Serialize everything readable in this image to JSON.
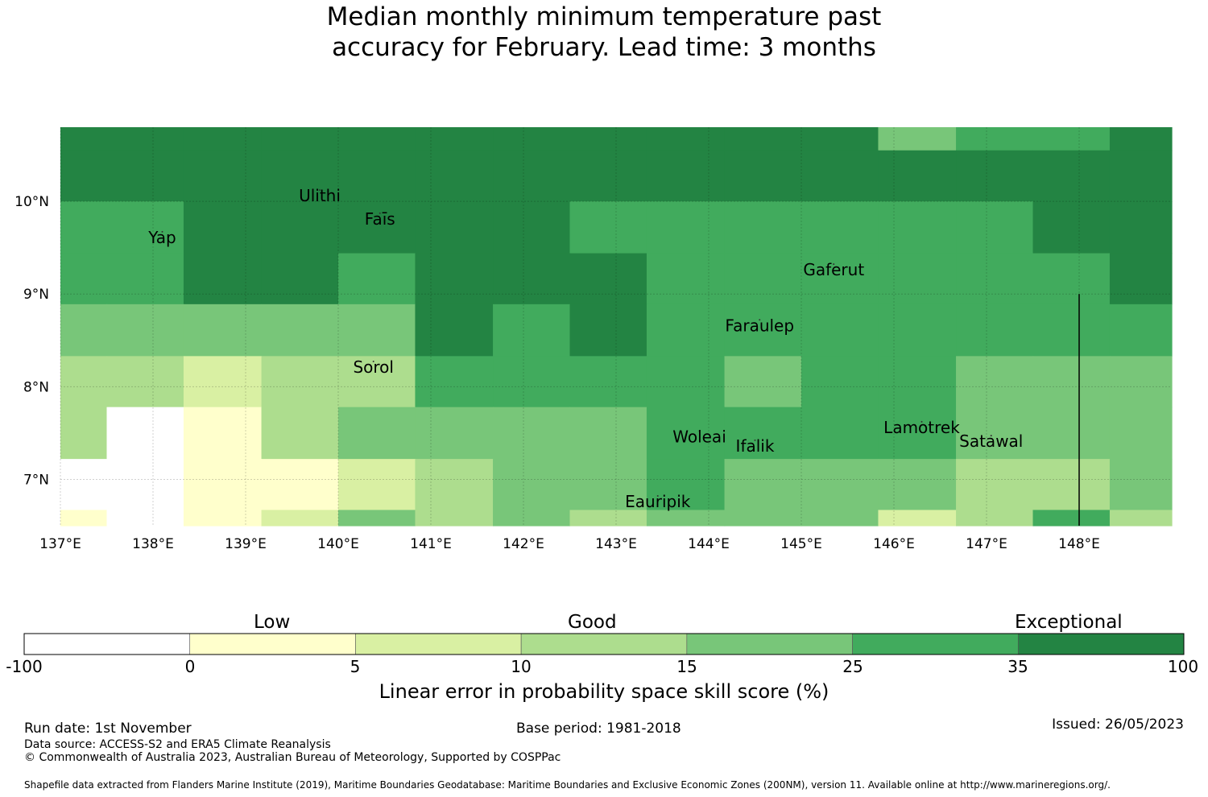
{
  "title": {
    "line1": "Median monthly minimum temperature past",
    "line2": "accuracy for February. Lead time: 3 months"
  },
  "map": {
    "lon_range": [
      137,
      149
    ],
    "lat_range": [
      6.5,
      10.8
    ],
    "x_ticks": [
      {
        "value": 137,
        "label": "137°E"
      },
      {
        "value": 138,
        "label": "138°E"
      },
      {
        "value": 139,
        "label": "139°E"
      },
      {
        "value": 140,
        "label": "140°E"
      },
      {
        "value": 141,
        "label": "141°E"
      },
      {
        "value": 142,
        "label": "142°E"
      },
      {
        "value": 143,
        "label": "143°E"
      },
      {
        "value": 144,
        "label": "144°E"
      },
      {
        "value": 145,
        "label": "145°E"
      },
      {
        "value": 146,
        "label": "146°E"
      },
      {
        "value": 147,
        "label": "147°E"
      },
      {
        "value": 148,
        "label": "148°E"
      }
    ],
    "y_ticks": [
      {
        "value": 10,
        "label": "10°N"
      },
      {
        "value": 9,
        "label": "9°N"
      },
      {
        "value": 8,
        "label": "8°N"
      },
      {
        "value": 7,
        "label": "7°N"
      }
    ],
    "grid_cols_lon": [
      137.0,
      137.5,
      138.33,
      139.17,
      140.0,
      140.83,
      141.67,
      142.5,
      143.33,
      144.17,
      145.0,
      145.83,
      146.67,
      147.5,
      148.33,
      149.0
    ],
    "grid_rows_lat": [
      10.8,
      10.55,
      10.0,
      9.44,
      8.89,
      8.33,
      7.78,
      7.22,
      6.67,
      6.5
    ],
    "cell_classes": [
      [
        6,
        6,
        6,
        6,
        6,
        6,
        6,
        6,
        6,
        6,
        6,
        4,
        5,
        5,
        6
      ],
      [
        6,
        6,
        6,
        6,
        6,
        6,
        6,
        6,
        6,
        6,
        6,
        6,
        6,
        6,
        6
      ],
      [
        5,
        5,
        6,
        6,
        6,
        6,
        6,
        5,
        5,
        5,
        5,
        5,
        5,
        6,
        6
      ],
      [
        5,
        5,
        6,
        6,
        5,
        6,
        6,
        6,
        5,
        5,
        5,
        5,
        5,
        5,
        6
      ],
      [
        4,
        4,
        4,
        4,
        4,
        6,
        5,
        6,
        5,
        5,
        5,
        5,
        5,
        5,
        5
      ],
      [
        3,
        3,
        2,
        3,
        3,
        5,
        5,
        5,
        5,
        4,
        5,
        5,
        4,
        4,
        4
      ],
      [
        3,
        0,
        1,
        3,
        4,
        4,
        4,
        4,
        5,
        5,
        5,
        5,
        4,
        4,
        4
      ],
      [
        0,
        0,
        1,
        1,
        2,
        3,
        4,
        4,
        5,
        4,
        4,
        4,
        3,
        3,
        4
      ],
      [
        1,
        0,
        1,
        2,
        4,
        3,
        4,
        3,
        4,
        4,
        4,
        2,
        3,
        5,
        3
      ]
    ],
    "places": [
      {
        "name": "Ulithi",
        "lon": 139.8,
        "lat": 10.0
      },
      {
        "name": "Faīs",
        "lon": 140.45,
        "lat": 9.75
      },
      {
        "name": "Yap",
        "lon": 138.1,
        "lat": 9.55
      },
      {
        "name": "Gaferut",
        "lon": 145.35,
        "lat": 9.2
      },
      {
        "name": "Faraulep",
        "lon": 144.55,
        "lat": 8.6
      },
      {
        "name": "Sorol",
        "lon": 140.38,
        "lat": 8.15
      },
      {
        "name": "Woleai",
        "lon": 143.9,
        "lat": 7.4
      },
      {
        "name": "Ifalik",
        "lon": 144.5,
        "lat": 7.3
      },
      {
        "name": "Lamotrek",
        "lon": 146.3,
        "lat": 7.5
      },
      {
        "name": "Satawal",
        "lon": 147.05,
        "lat": 7.35
      },
      {
        "name": "Eauripik",
        "lon": 143.45,
        "lat": 6.7
      }
    ],
    "boundary_line_lon": 148.0,
    "boundary_line_lat_range": [
      6.5,
      9.0
    ]
  },
  "legend": {
    "colors": [
      "#ffffff",
      "#ffffcc",
      "#d9f0a3",
      "#addd8e",
      "#78c679",
      "#41ab5d",
      "#238443"
    ],
    "ticks": [
      "-100",
      "0",
      "5",
      "10",
      "15",
      "25",
      "35",
      "100"
    ],
    "categories": [
      "Low",
      "Good",
      "Exceptional"
    ],
    "axis_title": "Linear error in probability space skill score (%)"
  },
  "footer": {
    "run_date": "Run date: 1st November",
    "base_period": "Base period: 1981-2018",
    "issued": "Issued: 26/05/2023",
    "data_source": "Data source: ACCESS-S2 and ERA5 Climate Reanalysis",
    "copyright": "© Commonwealth of Australia 2023, Australian Bureau of Meteorology, Supported by COSPPac",
    "shapefile": "Shapefile data extracted from Flanders Marine Institute (2019), Maritime Boundaries Geodatabase: Maritime Boundaries and Exclusive Economic Zones (200NM), version 11. Available online at http://www.marineregions.org/."
  }
}
